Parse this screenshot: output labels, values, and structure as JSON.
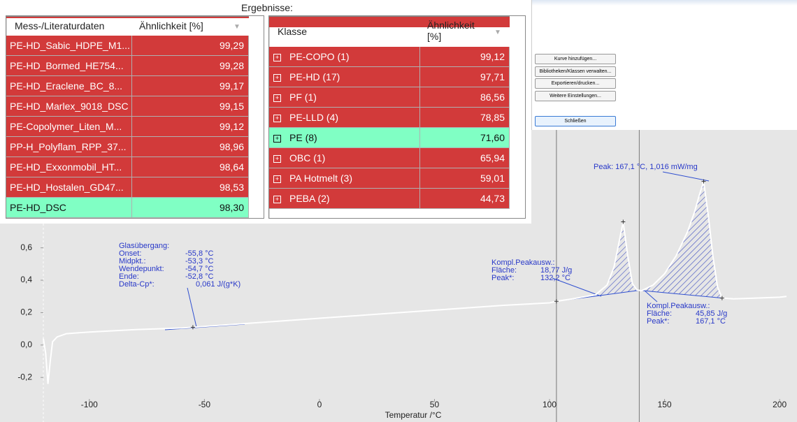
{
  "results": {
    "title": "Ergebnisse:",
    "left_table": {
      "headers": [
        "Mess-/Literaturdaten",
        "Ähnlichkeit [%]"
      ],
      "rows": [
        {
          "name": "PE-HD_Sabic_HDPE_M1...",
          "similarity": "99,29",
          "color": "#d23a3a"
        },
        {
          "name": "PE-HD_Bormed_HE754...",
          "similarity": "99,28",
          "color": "#d23a3a"
        },
        {
          "name": "PE-HD_Eraclene_BC_8...",
          "similarity": "99,17",
          "color": "#d23a3a"
        },
        {
          "name": "PE-HD_Marlex_9018_DSC",
          "similarity": "99,15",
          "color": "#d23a3a"
        },
        {
          "name": "PE-Copolymer_Liten_M...",
          "similarity": "99,12",
          "color": "#d23a3a"
        },
        {
          "name": "PP-H_Polyflam_RPP_37...",
          "similarity": "98,96",
          "color": "#d23a3a"
        },
        {
          "name": "PE-HD_Exxonmobil_HT...",
          "similarity": "98,64",
          "color": "#d23a3a"
        },
        {
          "name": "PE-HD_Hostalen_GD47...",
          "similarity": "98,53",
          "color": "#d23a3a"
        },
        {
          "name": "PE-HD_DSC",
          "similarity": "98,30",
          "color": "#80ffc4"
        }
      ]
    },
    "right_table": {
      "headers": [
        "Klasse",
        "Ähnlichkeit [%]"
      ],
      "rows": [
        {
          "name": "PE-COPO  (1)",
          "similarity": "99,12",
          "color": "#d23a3a"
        },
        {
          "name": "PE-HD  (17)",
          "similarity": "97,71",
          "color": "#d23a3a"
        },
        {
          "name": "PF  (1)",
          "similarity": "86,56",
          "color": "#d23a3a"
        },
        {
          "name": "PE-LLD  (4)",
          "similarity": "78,85",
          "color": "#d23a3a"
        },
        {
          "name": "PE  (8)",
          "similarity": "71,60",
          "color": "#80ffc4"
        },
        {
          "name": "OBC  (1)",
          "similarity": "65,94",
          "color": "#d23a3a"
        },
        {
          "name": "PA Hotmelt  (3)",
          "similarity": "59,01",
          "color": "#d23a3a"
        },
        {
          "name": "PEBA  (2)",
          "similarity": "44,73",
          "color": "#d23a3a"
        }
      ]
    }
  },
  "buttons": [
    "Kurve hinzufügen...",
    "Bibliotheken/Klassen verwalten...",
    "Exportieren/drucken...",
    "Weitere Einstellungen...",
    "Schließen"
  ],
  "chart_data": {
    "type": "line",
    "x_label": "Temperatur /°C",
    "x": [
      -120,
      -119,
      -118,
      -117,
      -116,
      -114,
      -112,
      -110,
      -105,
      -100,
      -80,
      -60,
      -55,
      -40,
      -20,
      0,
      20,
      40,
      60,
      80,
      100,
      103,
      110,
      120,
      125,
      128,
      130,
      132,
      134,
      136,
      138,
      140,
      145,
      150,
      155,
      160,
      163,
      165,
      167,
      169,
      171,
      173,
      175,
      180,
      190,
      200,
      203
    ],
    "series": [
      {
        "color": "#ffffff",
        "values": [
          0.04,
          -0.05,
          -0.24,
          -0.1,
          0.02,
          0.05,
          0.06,
          0.07,
          0.075,
          0.08,
          0.095,
          0.105,
          0.11,
          0.125,
          0.145,
          0.165,
          0.185,
          0.205,
          0.225,
          0.245,
          0.26,
          0.27,
          0.285,
          0.31,
          0.37,
          0.48,
          0.62,
          0.76,
          0.55,
          0.38,
          0.34,
          0.335,
          0.37,
          0.44,
          0.55,
          0.7,
          0.82,
          0.92,
          1.01,
          0.8,
          0.55,
          0.36,
          0.29,
          0.285,
          0.29,
          0.295,
          0.3
        ]
      }
    ],
    "xlim": [
      -120,
      203
    ],
    "ylim": [
      -0.35,
      1.31
    ],
    "xticks": [
      -100,
      -50,
      0,
      50,
      100,
      150,
      200
    ],
    "yticks": [
      {
        "value": -0.2,
        "label": "-0,2"
      },
      {
        "value": 0,
        "label": "0,0"
      },
      {
        "value": 0.2,
        "label": "0,2"
      },
      {
        "value": 0.4,
        "label": "0,4"
      },
      {
        "value": 0.6,
        "label": "0,6"
      }
    ],
    "cursor_lines": [
      103,
      139
    ],
    "integration_ranges": [
      {
        "start": 103,
        "end": 139
      },
      {
        "start": 139,
        "end": 175
      }
    ],
    "annotations": [
      {
        "lines": [
          [
            "Glasübergang:"
          ],
          [
            "Onset:",
            "-55,8 °C"
          ],
          [
            "Midpkt.:",
            "-53,3 °C"
          ],
          [
            "Wendepunkt:",
            "-54,7 °C"
          ],
          [
            "Ende:",
            "-52,8 °C"
          ],
          [
            "Delta-Cp*:",
            "0,061 J/(g*K)"
          ]
        ]
      },
      {
        "lines": [
          [
            "Peak: 167,1 °C, 1,016 mW/mg"
          ]
        ]
      },
      {
        "lines": [
          [
            "Kompl.Peakausw.:"
          ],
          [
            "Fläche:",
            "18,77 J/g"
          ],
          [
            "Peak*:",
            "132,2 °C"
          ]
        ]
      },
      {
        "lines": [
          [
            "Kompl.Peakausw.:"
          ],
          [
            "Fläche:",
            "45,85 J/g"
          ],
          [
            "Peak*:",
            "167,1 °C"
          ]
        ]
      }
    ]
  }
}
